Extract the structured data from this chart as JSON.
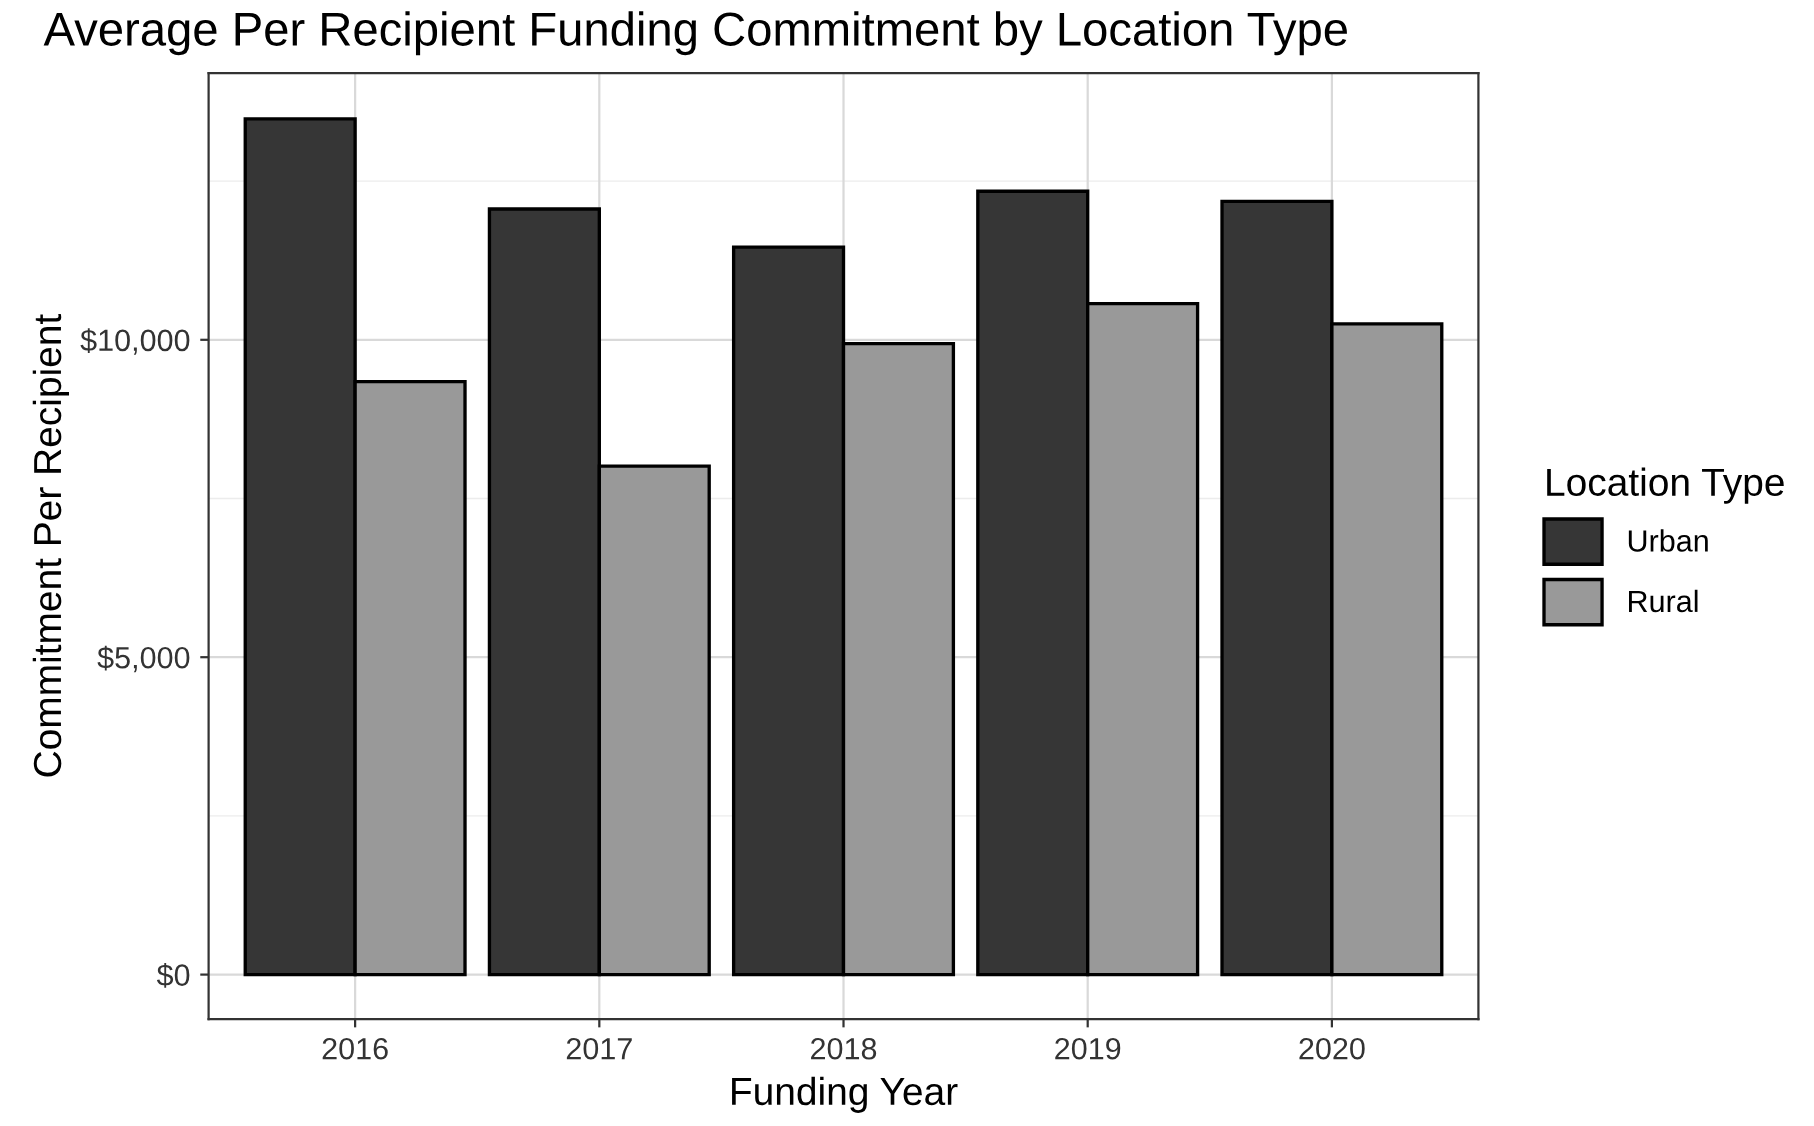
{
  "chart_data": {
    "type": "bar",
    "title": "Average Per Recipient Funding Commitment by Location Type",
    "xlabel": "Funding Year",
    "ylabel": "Commitment Per Recipient",
    "legend_title": "Location Type",
    "categories": [
      "2016",
      "2017",
      "2018",
      "2019",
      "2020"
    ],
    "series": [
      {
        "name": "Urban",
        "color": "#363636",
        "values": [
          13480,
          12060,
          11460,
          12340,
          12180
        ]
      },
      {
        "name": "Rural",
        "color": "#999999",
        "values": [
          9340,
          8010,
          9940,
          10570,
          10250
        ]
      }
    ],
    "ylim": [
      -700,
      14200
    ],
    "yticks": [
      {
        "value": 0,
        "label": "$0"
      },
      {
        "value": 5000,
        "label": "$5,000"
      },
      {
        "value": 10000,
        "label": "$10,000"
      }
    ],
    "grid": true,
    "legend": "right"
  }
}
